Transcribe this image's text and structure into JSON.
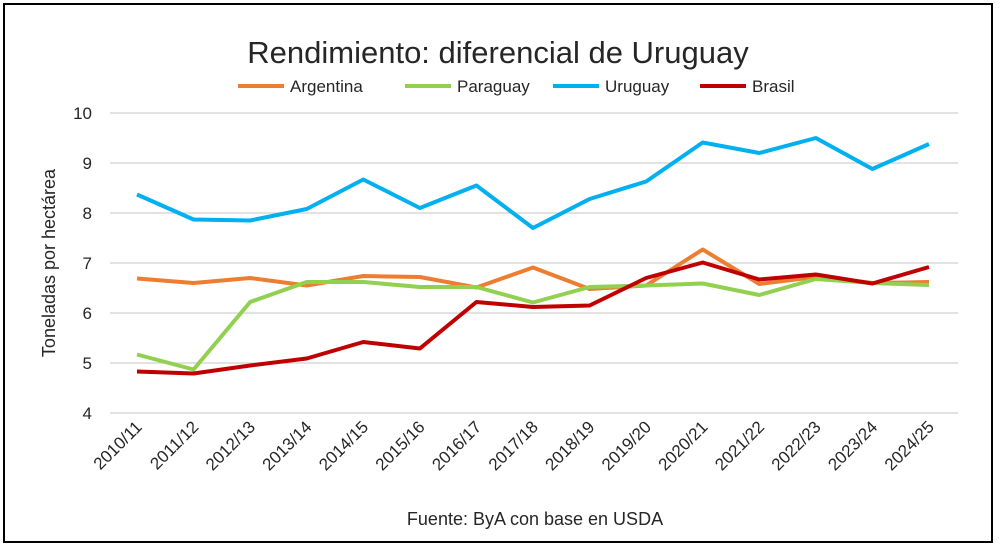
{
  "chart_data": {
    "type": "line",
    "title": "Rendimiento: diferencial de Uruguay",
    "ylabel": "Toneladas por hectárea",
    "xlabel": "",
    "source": "Fuente: ByA con base en USDA",
    "ylim": [
      4,
      10
    ],
    "yticks": [
      4,
      5,
      6,
      7,
      8,
      9,
      10
    ],
    "grid": true,
    "legend_position": "top",
    "categories": [
      "2010/11",
      "2011/12",
      "2012/13",
      "2013/14",
      "2014/15",
      "2015/16",
      "2016/17",
      "2017/18",
      "2018/19",
      "2019/20",
      "2020/21",
      "2021/22",
      "2022/23",
      "2023/24",
      "2024/25"
    ],
    "series": [
      {
        "name": "Argentina",
        "color": "#ED7D31",
        "values": [
          6.69,
          6.6,
          6.7,
          6.55,
          6.74,
          6.72,
          6.51,
          6.91,
          6.48,
          6.55,
          7.27,
          6.58,
          6.72,
          6.6,
          6.62
        ]
      },
      {
        "name": "Paraguay",
        "color": "#92D050",
        "values": [
          5.17,
          4.87,
          6.22,
          6.62,
          6.62,
          6.52,
          6.52,
          6.21,
          6.52,
          6.55,
          6.59,
          6.36,
          6.68,
          6.6,
          6.56
        ]
      },
      {
        "name": "Uruguay",
        "color": "#00B0F0",
        "values": [
          8.37,
          7.87,
          7.85,
          8.08,
          8.67,
          8.1,
          8.55,
          7.7,
          8.28,
          8.63,
          9.41,
          9.2,
          9.5,
          8.88,
          9.38
        ]
      },
      {
        "name": "Brasil",
        "color": "#C00000",
        "values": [
          4.83,
          4.79,
          4.95,
          5.09,
          5.42,
          5.29,
          6.22,
          6.12,
          6.15,
          6.7,
          7.01,
          6.67,
          6.77,
          6.59,
          6.92
        ]
      }
    ]
  }
}
